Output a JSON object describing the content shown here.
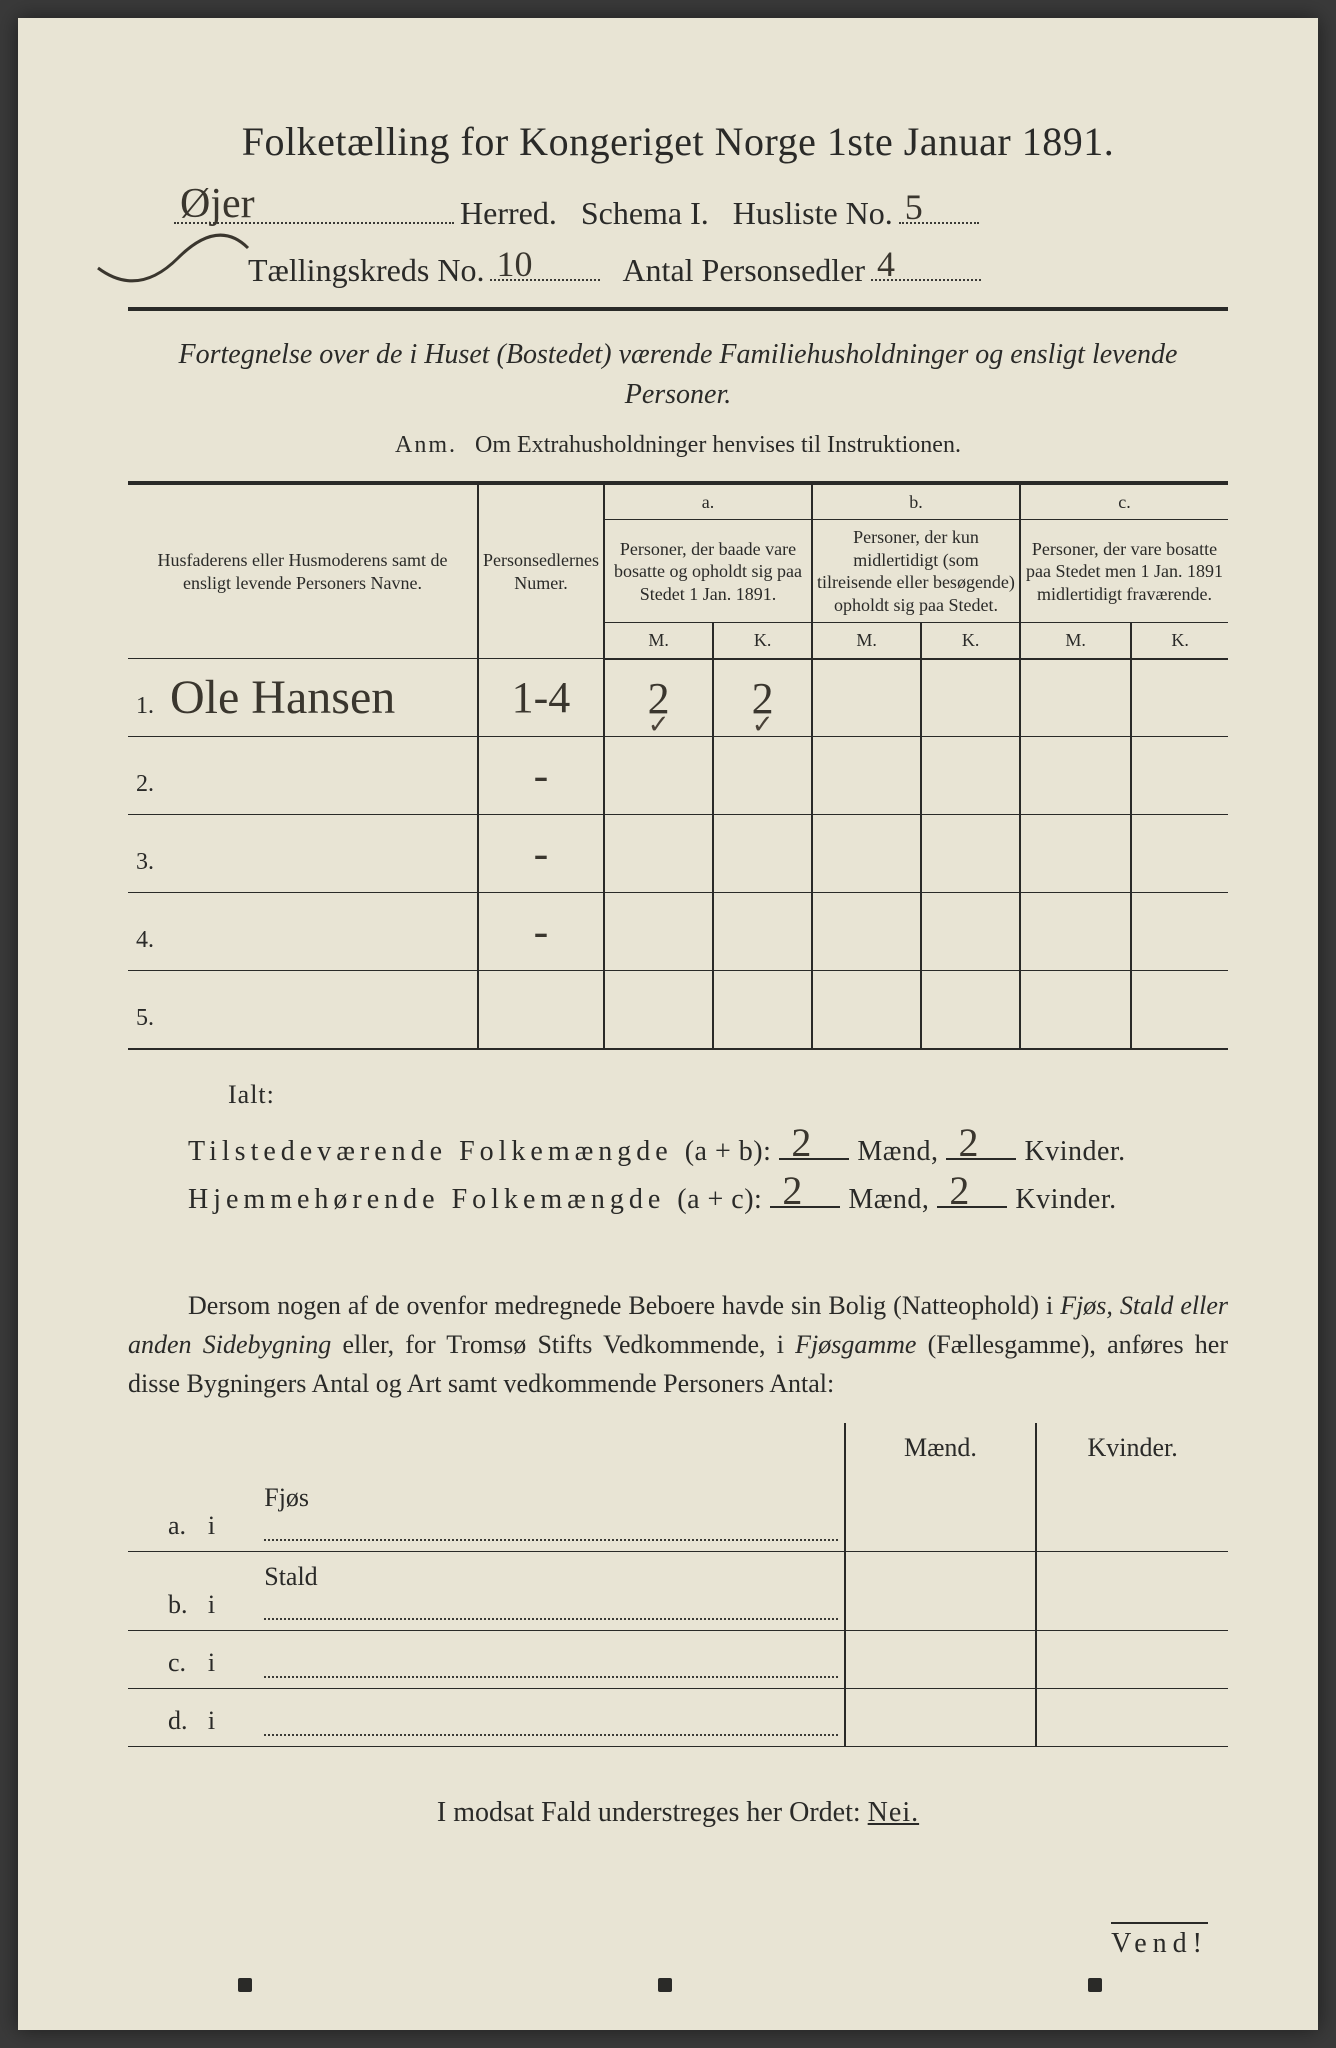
{
  "colors": {
    "page_bg": "#e8e4d4",
    "ink": "#2a2a28",
    "handwriting": "#3a362e",
    "outer_bg": "#3a3a3a"
  },
  "title": "Folketælling for Kongeriget Norge 1ste Januar 1891.",
  "header": {
    "herred_value": "Øjer",
    "herred_label": "Herred.",
    "schema_label": "Schema I.",
    "husliste_label": "Husliste No.",
    "husliste_value": "5",
    "kreds_label": "Tællingskreds No.",
    "kreds_value": "10",
    "antal_label": "Antal Personsedler",
    "antal_value": "4"
  },
  "subtitle": "Fortegnelse over de i Huset (Bostedet) værende Familiehusholdninger og ensligt levende Personer.",
  "anm_label": "Anm.",
  "anm_text": "Om Extrahusholdninger henvises til Instruktionen.",
  "table": {
    "col_names": "Husfaderens eller Husmoderens samt de ensligt levende Personers Navne.",
    "col_numer": "Personsedlernes Numer.",
    "hdr_a": "a.",
    "hdr_b": "b.",
    "hdr_c": "c.",
    "col_a": "Personer, der baade vare bosatte og opholdt sig paa Stedet 1 Jan. 1891.",
    "col_b": "Personer, der kun midlertidigt (som tilreisende eller besøgende) opholdt sig paa Stedet.",
    "col_c": "Personer, der vare bosatte paa Stedet men 1 Jan. 1891 midlertidigt fraværende.",
    "M": "M.",
    "K": "K.",
    "rows": [
      {
        "n": "1.",
        "name": "Ole Hansen",
        "numer": "1-4",
        "aM": "2",
        "aK": "2",
        "bM": "",
        "bK": "",
        "cM": "",
        "cK": ""
      },
      {
        "n": "2.",
        "name": "",
        "numer": "-",
        "aM": "",
        "aK": "",
        "bM": "",
        "bK": "",
        "cM": "",
        "cK": ""
      },
      {
        "n": "3.",
        "name": "",
        "numer": "-",
        "aM": "",
        "aK": "",
        "bM": "",
        "bK": "",
        "cM": "",
        "cK": ""
      },
      {
        "n": "4.",
        "name": "",
        "numer": "-",
        "aM": "",
        "aK": "",
        "bM": "",
        "bK": "",
        "cM": "",
        "cK": ""
      },
      {
        "n": "5.",
        "name": "",
        "numer": "",
        "aM": "",
        "aK": "",
        "bM": "",
        "bK": "",
        "cM": "",
        "cK": ""
      }
    ]
  },
  "ialt": "Ialt:",
  "sum1": {
    "label": "Tilstedeværende Folkemængde",
    "formula": "(a + b):",
    "m": "2",
    "k": "2",
    "maend": "Mænd,",
    "kvinder": "Kvinder."
  },
  "sum2": {
    "label": "Hjemmehørende Folkemængde",
    "formula": "(a + c):",
    "m": "2",
    "k": "2",
    "maend": "Mænd,",
    "kvinder": "Kvinder."
  },
  "paragraph": {
    "p1": "Dersom nogen af de ovenfor medregnede Beboere havde sin Bolig (Natteophold) i ",
    "i1": "Fjøs, Stald eller anden Sidebygning",
    "p2": " eller, for Tromsø Stifts Vedkommende, i ",
    "i2": "Fjøsgamme",
    "p3": " (Fællesgamme), anføres her disse Bygningers Antal og Art samt vedkommende Personers Antal:"
  },
  "bldg": {
    "maend": "Mænd.",
    "kvinder": "Kvinder.",
    "rows": [
      {
        "lbl": "a.",
        "i": "i",
        "place": "Fjøs"
      },
      {
        "lbl": "b.",
        "i": "i",
        "place": "Stald"
      },
      {
        "lbl": "c.",
        "i": "i",
        "place": ""
      },
      {
        "lbl": "d.",
        "i": "i",
        "place": ""
      }
    ]
  },
  "nei_line": "I modsat Fald understreges her Ordet: ",
  "nei": "Nei.",
  "vend": "Vend!"
}
